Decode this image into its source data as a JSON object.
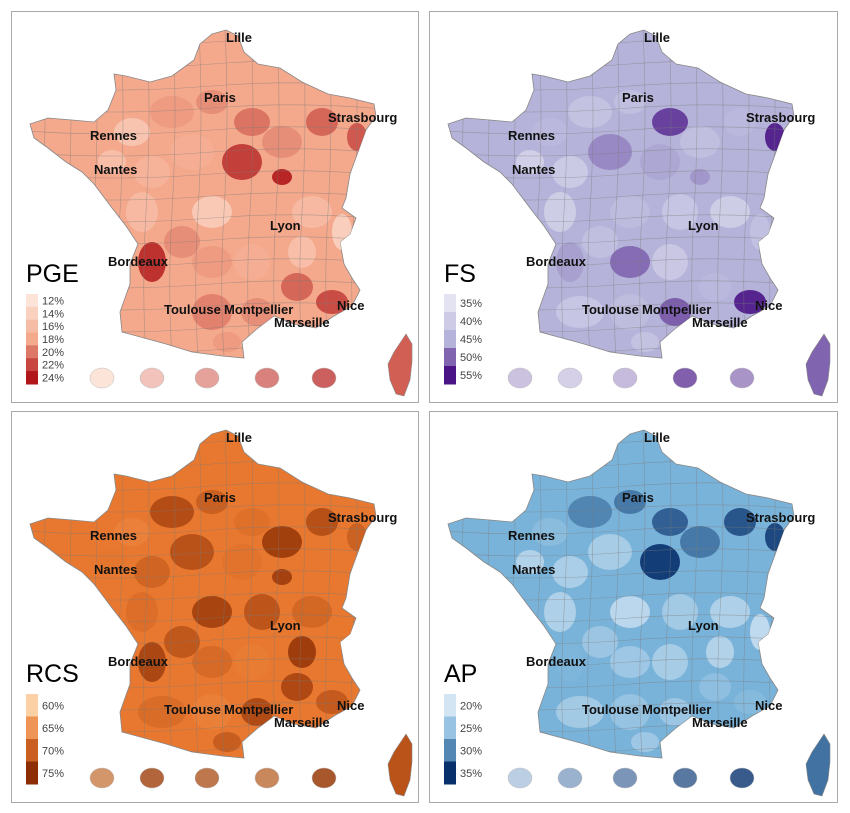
{
  "panels": [
    {
      "id": "pge",
      "title": "PGE",
      "legend": [
        "12%",
        "14%",
        "16%",
        "18%",
        "20%",
        "22%",
        "24%"
      ],
      "colors": {
        "base": "#f4a88c",
        "light": "#fde4d8",
        "dark": "#b0161a",
        "mid": "#ea5b45"
      },
      "cities": [
        "Lille",
        "Paris",
        "Strasbourg",
        "Rennes",
        "Nantes",
        "Lyon",
        "Bordeaux",
        "Toulouse",
        "Montpellier",
        "Nice",
        "Marseille"
      ]
    },
    {
      "id": "fs",
      "title": "FS",
      "legend": [
        "35%",
        "40%",
        "45%",
        "50%",
        "55%"
      ],
      "colors": {
        "base": "#b5b3d9",
        "light": "#e4e3f1",
        "dark": "#4a1486",
        "mid": "#7c74b8"
      },
      "cities": [
        "Lille",
        "Paris",
        "Strasbourg",
        "Rennes",
        "Nantes",
        "Lyon",
        "Bordeaux",
        "Toulouse",
        "Montpellier",
        "Nice",
        "Marseille"
      ]
    },
    {
      "id": "rcs",
      "title": "RCS",
      "legend": [
        "60%",
        "65%",
        "70%",
        "75%"
      ],
      "colors": {
        "base": "#e8782f",
        "light": "#fbd0a4",
        "dark": "#8c2d04",
        "mid": "#d95f0e"
      },
      "cities": [
        "Lille",
        "Paris",
        "Strasbourg",
        "Rennes",
        "Nantes",
        "Lyon",
        "Bordeaux",
        "Toulouse",
        "Montpellier",
        "Nice",
        "Marseille"
      ]
    },
    {
      "id": "ap",
      "title": "AP",
      "legend": [
        "20%",
        "25%",
        "30%",
        "35%"
      ],
      "colors": {
        "base": "#7ab3d9",
        "light": "#d3e4f3",
        "dark": "#08306b",
        "mid": "#3a87c2"
      },
      "cities": [
        "Lille",
        "Paris",
        "Strasbourg",
        "Rennes",
        "Nantes",
        "Lyon",
        "Bordeaux",
        "Toulouse",
        "Montpellier",
        "Nice",
        "Marseille"
      ]
    }
  ]
}
